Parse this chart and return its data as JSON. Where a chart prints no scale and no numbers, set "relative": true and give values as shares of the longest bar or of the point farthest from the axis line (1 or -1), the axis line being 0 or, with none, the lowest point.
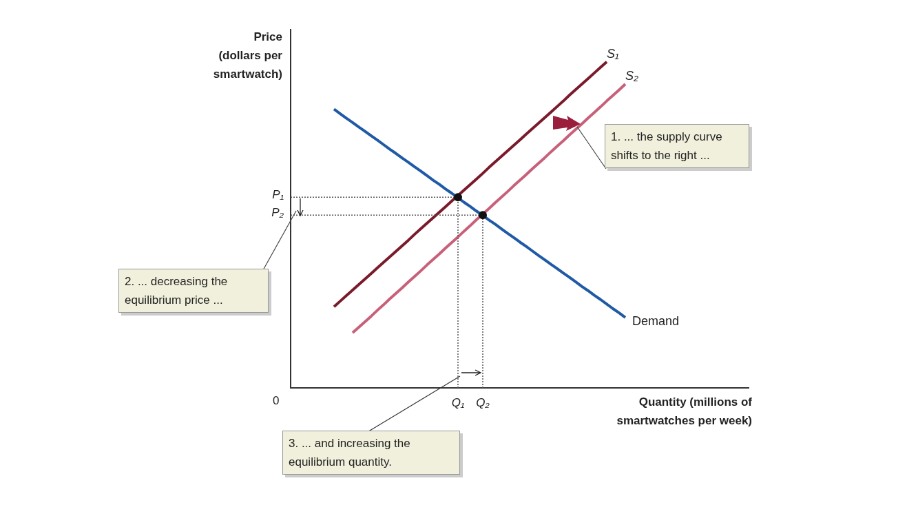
{
  "chart_data": {
    "type": "line",
    "relative": true,
    "xlabel": "Quantity (millions of\nsmartwatches per week)",
    "ylabel": "Price\n(dollars per\nsmartwatch)",
    "line_style": "solid",
    "marker": "none",
    "categories": [
      null,
      null,
      null,
      null,
      null,
      null,
      null,
      null,
      null,
      null,
      null,
      null,
      null,
      null,
      null,
      null,
      null,
      null,
      null,
      null,
      null,
      null,
      null,
      null,
      null,
      null,
      null,
      "Q₁",
      null,
      null,
      null,
      "Q₂",
      null,
      null,
      null,
      null,
      null,
      null,
      null,
      null,
      null,
      null,
      null,
      null,
      null,
      null,
      null,
      null,
      null,
      null,
      null,
      null,
      null,
      null,
      null,
      null,
      null,
      null,
      null,
      null,
      null,
      null,
      null,
      null,
      null,
      null,
      null,
      null,
      null,
      null,
      null,
      null,
      null,
      null,
      null
    ],
    "series": [
      {
        "name": "Demand",
        "color": "#1f5aa6",
        "values": [
          null,
          null,
          null,
          null,
          null,
          null,
          null,
          0.855,
          0.841,
          0.827,
          0.814,
          0.8,
          0.787,
          0.773,
          0.76,
          0.746,
          0.732,
          0.719,
          0.705,
          0.692,
          0.678,
          0.665,
          0.651,
          0.637,
          0.624,
          0.61,
          0.597,
          0.583,
          0.569,
          0.556,
          0.542,
          0.529,
          0.515,
          0.502,
          0.488,
          0.474,
          0.461,
          0.447,
          0.434,
          0.42,
          0.406,
          0.393,
          0.379,
          0.366,
          0.352,
          0.339,
          0.325,
          0.311,
          0.298,
          0.284,
          0.271,
          0.257,
          0.243,
          0.23,
          0.216,
          null,
          null,
          null,
          null,
          null,
          null,
          null,
          null,
          null,
          null,
          null,
          null,
          null,
          null,
          null,
          null,
          null,
          null,
          null,
          null
        ]
      },
      {
        "name": "S₁",
        "color": "#7a1a2a",
        "values": [
          null,
          null,
          null,
          null,
          null,
          null,
          null,
          0.249,
          0.266,
          0.283,
          0.3,
          0.317,
          0.334,
          0.351,
          0.368,
          0.385,
          0.402,
          0.419,
          0.436,
          0.453,
          0.471,
          0.488,
          0.505,
          0.522,
          0.539,
          0.556,
          0.573,
          0.59,
          0.607,
          0.624,
          0.641,
          0.658,
          0.676,
          0.693,
          0.71,
          0.727,
          0.744,
          0.761,
          0.778,
          0.795,
          0.812,
          0.829,
          0.846,
          0.863,
          0.88,
          0.898,
          0.915,
          0.932,
          0.949,
          0.966,
          0.983,
          1.0,
          null,
          null,
          null,
          null,
          null,
          null,
          null,
          null,
          null,
          null,
          null,
          null,
          null,
          null,
          null,
          null,
          null,
          null,
          null,
          null,
          null,
          null,
          null
        ]
      },
      {
        "name": "S₂",
        "color": "#c8607a",
        "values": [
          null,
          null,
          null,
          null,
          null,
          null,
          null,
          null,
          null,
          null,
          0.169,
          0.186,
          0.203,
          0.22,
          0.238,
          0.255,
          0.273,
          0.29,
          0.307,
          0.325,
          0.342,
          0.359,
          0.377,
          0.394,
          0.411,
          0.429,
          0.446,
          0.463,
          0.481,
          0.498,
          0.516,
          0.533,
          0.55,
          0.568,
          0.585,
          0.602,
          0.62,
          0.637,
          0.654,
          0.672,
          0.689,
          0.706,
          0.724,
          0.741,
          0.758,
          0.776,
          0.793,
          0.81,
          0.828,
          0.845,
          0.862,
          0.88,
          0.897,
          0.914,
          0.932,
          null,
          null,
          null,
          null,
          null,
          null,
          null,
          null,
          null,
          null,
          null,
          null,
          null,
          null,
          null,
          null,
          null,
          null,
          null,
          null
        ]
      }
    ],
    "ref_lines": [
      {
        "axis": "y",
        "value": 0.585,
        "label": "P₁",
        "line_style": "dotted",
        "color": "#555555"
      },
      {
        "axis": "y",
        "value": 0.53,
        "label": "P₂",
        "line_style": "dotted",
        "color": "#555555"
      },
      {
        "axis": "x",
        "value": "Q₁",
        "line_style": "dotted",
        "color": "#555555"
      },
      {
        "axis": "x",
        "value": "Q₂",
        "line_style": "dotted",
        "color": "#555555"
      }
    ],
    "annotations": [
      "1. ... the supply curve shifts to the right ...",
      "2. ... decreasing the equilibrium price ...",
      {
        "text": "3. ... and increasing the equilibrium quantity.",
        "x": "Q₁",
        "y": 0.036
      },
      "0"
    ]
  }
}
